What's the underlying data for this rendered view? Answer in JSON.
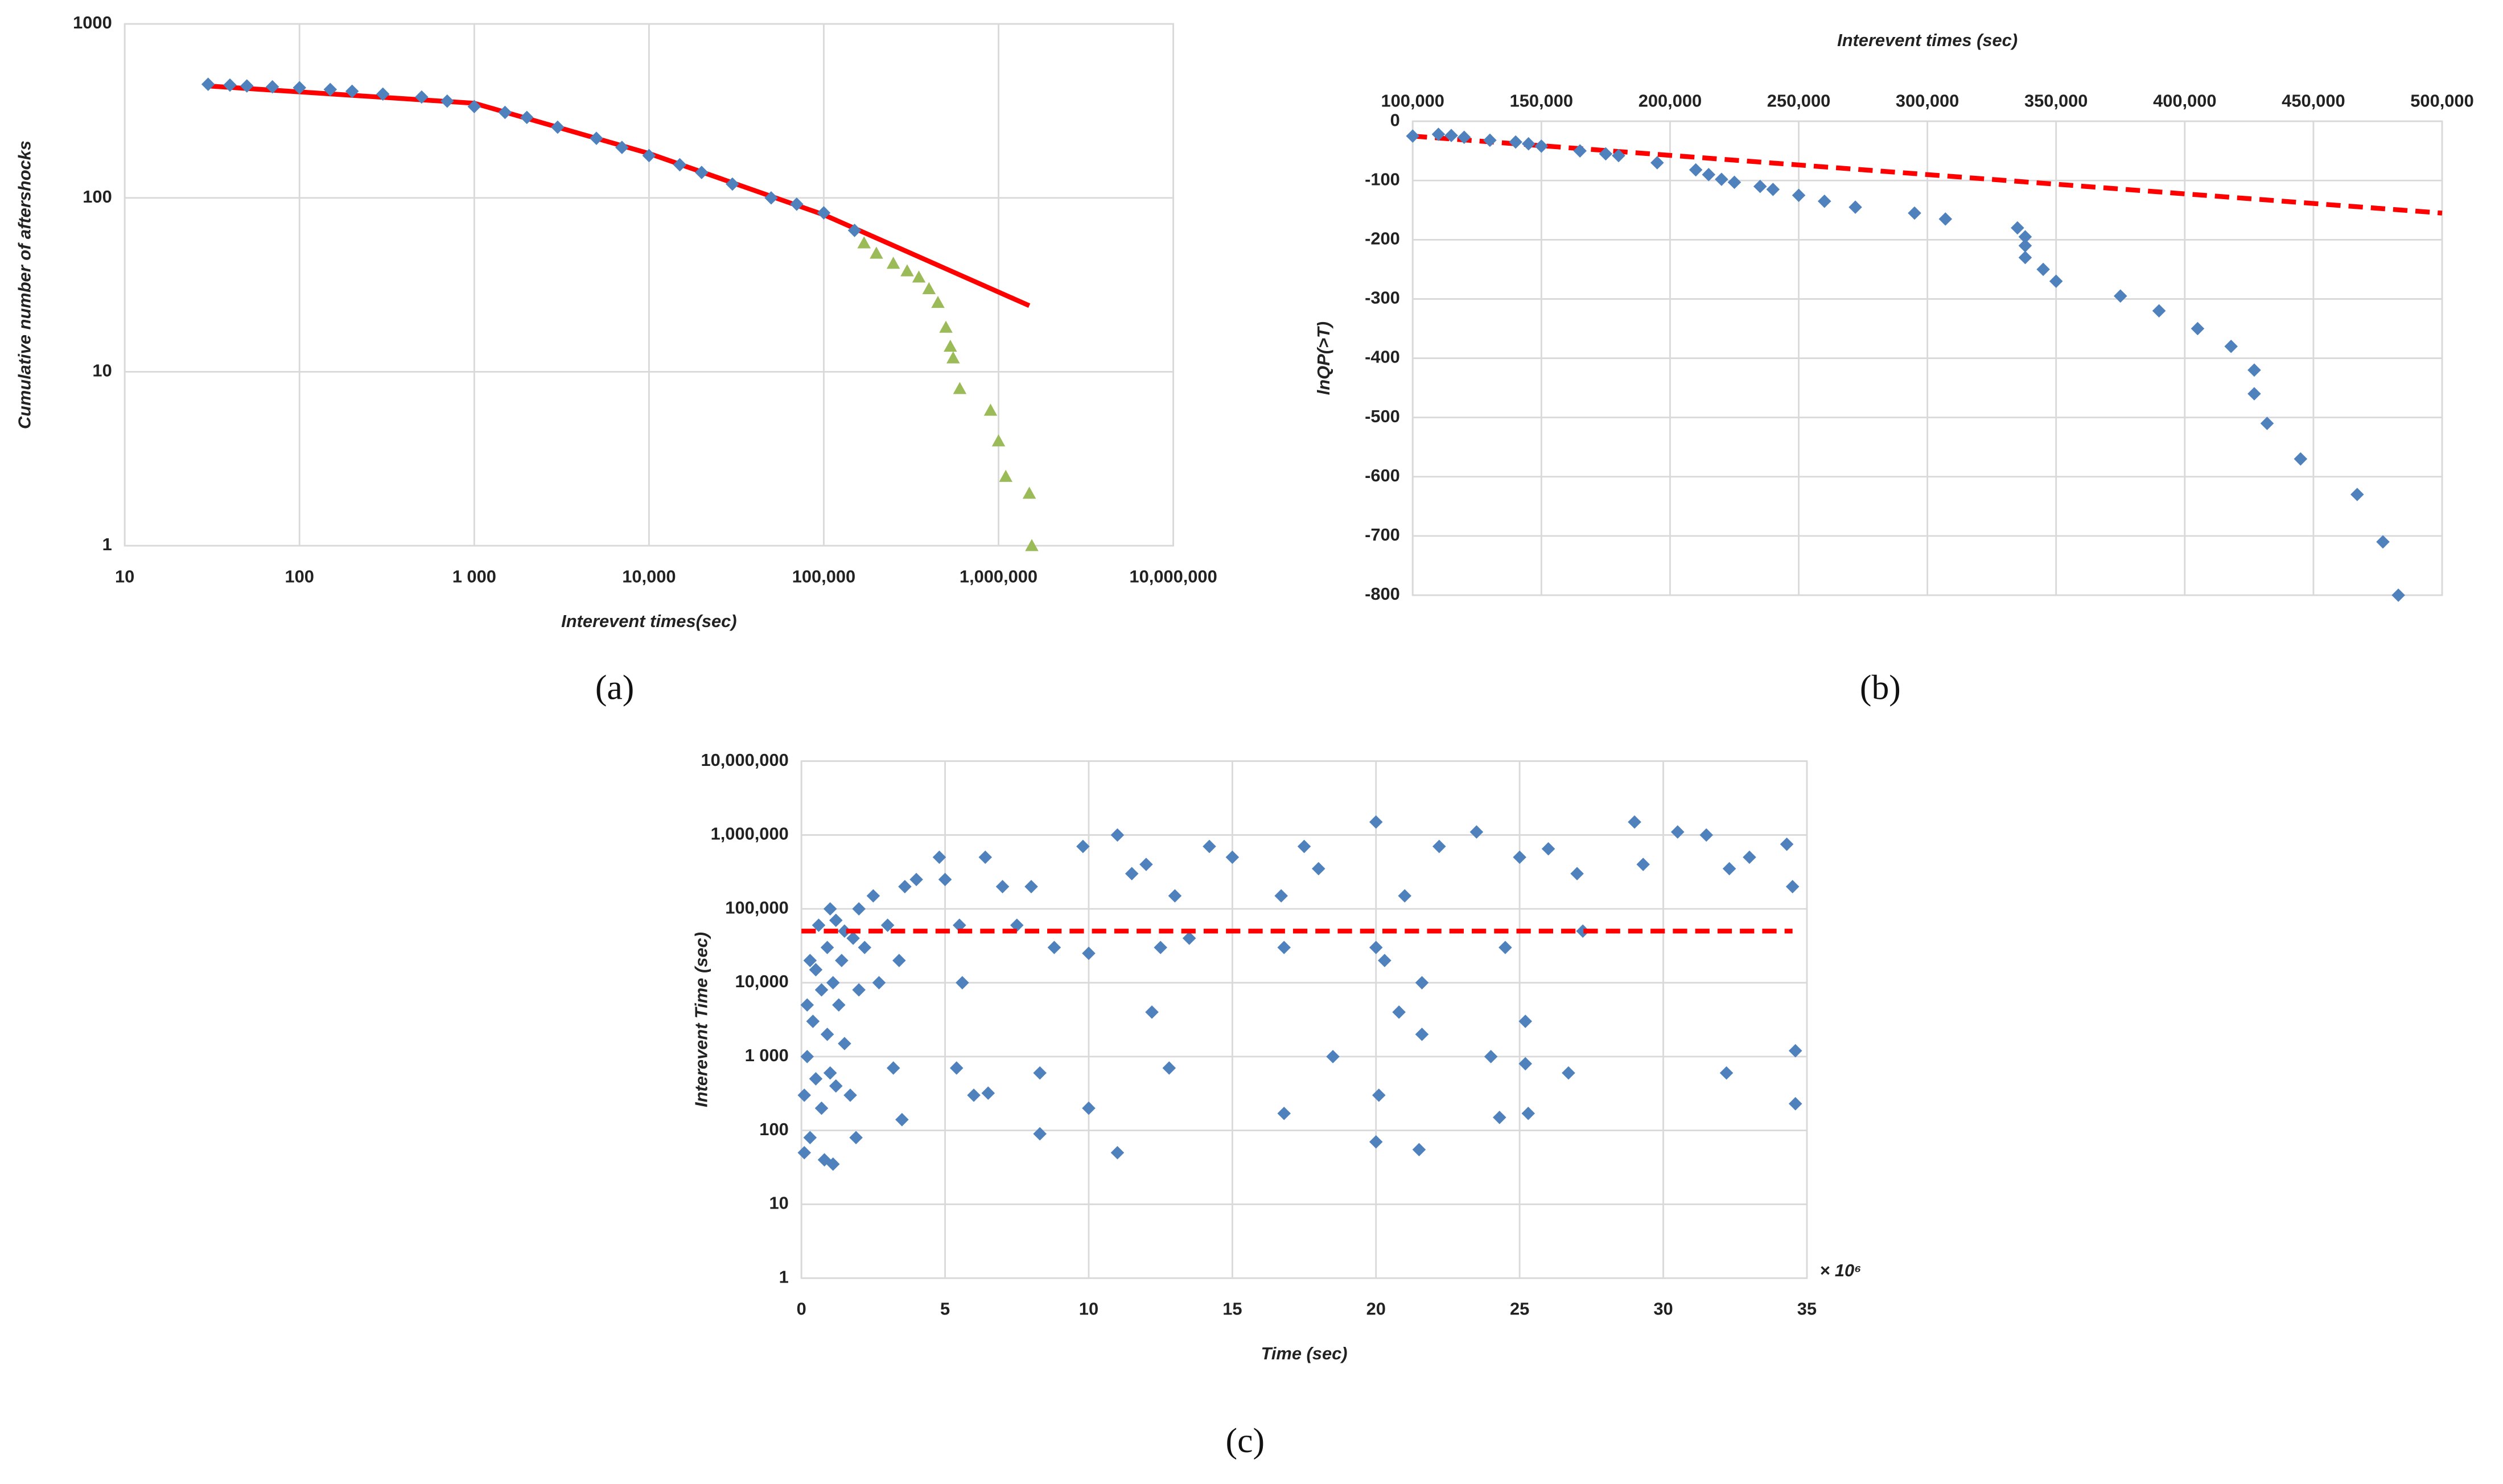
{
  "chart_data": [
    {
      "type": "scatter",
      "panel_label": "(a)",
      "xlabel": "Interevent  times(sec)",
      "ylabel": "Cumulative number of aftershocks",
      "xscale": "log",
      "yscale": "log",
      "grid": true,
      "x_axis_position": "bottom",
      "xlim": [
        10,
        10000000
      ],
      "ylim": [
        1,
        1000
      ],
      "xticks": [
        10,
        100,
        {
          "value": 1000,
          "label": "1 000"
        },
        {
          "value": 10000,
          "label": "10,000"
        },
        {
          "value": 100000,
          "label": "100,000"
        },
        {
          "value": 1000000,
          "label": "1,000,000"
        },
        {
          "value": 10000000,
          "label": "10,000,000"
        }
      ],
      "yticks": [
        1,
        10,
        100,
        1000
      ],
      "series": [
        {
          "color": "#ff0000",
          "marker": "line",
          "x": [
            30,
            1000,
            10000,
            100000,
            1500000
          ],
          "values": [
            440,
            350,
            180,
            80,
            24
          ]
        },
        {
          "color": "#4f81bd",
          "marker": "diamond",
          "x": [
            30,
            40,
            50,
            70,
            100,
            150,
            200,
            300,
            500,
            700,
            1000,
            1500,
            2000,
            3000,
            5000,
            7000,
            10000,
            15000,
            20000,
            30000,
            50000,
            70000,
            100000,
            150000
          ],
          "values": [
            450,
            445,
            440,
            435,
            430,
            420,
            410,
            395,
            380,
            360,
            335,
            310,
            290,
            255,
            220,
            195,
            175,
            155,
            140,
            120,
            100,
            92,
            82,
            65
          ]
        },
        {
          "color": "#9bbb59",
          "marker": "triangle",
          "x": [
            170000,
            200000,
            250000,
            300000,
            350000,
            400000,
            450000,
            500000,
            530000,
            550000,
            600000,
            900000,
            1000000,
            1100000,
            1500000,
            1550000
          ],
          "values": [
            55,
            48,
            42,
            38,
            35,
            30,
            25,
            18,
            14,
            12,
            8,
            6,
            4,
            2.5,
            2,
            1
          ]
        }
      ]
    },
    {
      "type": "scatter",
      "panel_label": "(b)",
      "xlabel": "Interevent times (sec)",
      "ylabel": "lnQP(>T)",
      "xscale": "linear",
      "yscale": "linear",
      "grid": true,
      "x_axis_position": "top",
      "xlim": [
        100000,
        500000
      ],
      "ylim": [
        -800,
        0
      ],
      "xticks": [
        {
          "value": 100000,
          "label": "100,000"
        },
        {
          "value": 150000,
          "label": "150,000"
        },
        {
          "value": 200000,
          "label": "200,000"
        },
        {
          "value": 250000,
          "label": "250,000"
        },
        {
          "value": 300000,
          "label": "300,000"
        },
        {
          "value": 350000,
          "label": "350,000"
        },
        {
          "value": 400000,
          "label": "400,000"
        },
        {
          "value": 450000,
          "label": "450,000"
        },
        {
          "value": 500000,
          "label": "500,000"
        }
      ],
      "yticks": [
        0,
        -100,
        -200,
        -300,
        -400,
        -500,
        -600,
        -700,
        -800
      ],
      "series": [
        {
          "color": "#ff0000",
          "marker": "dashed",
          "x": [
            100000,
            500000
          ],
          "values": [
            -25,
            -155
          ]
        },
        {
          "color": "#4f81bd",
          "marker": "diamond",
          "x": [
            100000,
            110000,
            115000,
            120000,
            130000,
            140000,
            145000,
            150000,
            165000,
            175000,
            180000,
            195000,
            210000,
            215000,
            220000,
            225000,
            235000,
            240000,
            250000,
            260000,
            272000,
            295000,
            307000,
            335000,
            338000,
            338000,
            338000,
            345000,
            350000,
            375000,
            390000,
            405000,
            418000,
            427000,
            427000,
            432000,
            445000,
            467000,
            477000,
            483000
          ],
          "values": [
            -25,
            -22,
            -24,
            -27,
            -32,
            -35,
            -38,
            -42,
            -50,
            -55,
            -58,
            -70,
            -82,
            -90,
            -98,
            -103,
            -110,
            -115,
            -125,
            -135,
            -145,
            -155,
            -165,
            -180,
            -195,
            -210,
            -230,
            -250,
            -270,
            -295,
            -320,
            -350,
            -380,
            -420,
            -460,
            -510,
            -570,
            -630,
            -710,
            -800
          ]
        }
      ]
    },
    {
      "type": "scatter",
      "panel_label": "(c)",
      "xlabel": "Time (sec)",
      "ylabel": "Interevent Time (sec)",
      "x_multiplier": "× 10⁶",
      "xscale": "linear",
      "yscale": "log",
      "grid": true,
      "x_axis_position": "bottom",
      "xlim": [
        0,
        35
      ],
      "ylim": [
        1,
        10000000
      ],
      "xticks": [
        0,
        5,
        10,
        15,
        20,
        25,
        30,
        35
      ],
      "yticks": [
        1,
        10,
        100,
        {
          "value": 1000,
          "label": "1 000"
        },
        {
          "value": 10000,
          "label": "10,000"
        },
        {
          "value": 100000,
          "label": "100,000"
        },
        {
          "value": 1000000,
          "label": "1,000,000"
        },
        {
          "value": 10000000,
          "label": "10,000,000"
        }
      ],
      "series": [
        {
          "color": "#4f81bd",
          "marker": "diamond",
          "x": [
            0.1,
            0.1,
            0.2,
            0.2,
            0.3,
            0.3,
            0.4,
            0.5,
            0.5,
            0.6,
            0.7,
            0.7,
            0.8,
            0.9,
            0.9,
            1.0,
            1.0,
            1.1,
            1.1,
            1.2,
            1.2,
            1.3,
            1.4,
            1.5,
            1.5,
            1.7,
            1.8,
            1.9,
            2.0,
            2.0,
            2.2,
            2.5,
            2.7,
            3.0,
            3.2,
            3.4,
            3.5,
            3.6,
            4.0,
            4.8,
            5.0,
            5.4,
            5.5,
            5.6,
            6.0,
            6.4,
            6.5,
            7.0,
            7.5,
            8.0,
            8.3,
            8.3,
            8.8,
            9.8,
            10.0,
            10.0,
            11.0,
            11.0,
            11.5,
            12.0,
            12.2,
            12.5,
            12.8,
            13.0,
            13.5,
            14.2,
            15.0,
            16.7,
            16.8,
            16.8,
            17.5,
            18.0,
            18.5,
            20.0,
            20.0,
            20.0,
            20.1,
            20.3,
            20.8,
            21.0,
            21.5,
            21.6,
            21.6,
            22.2,
            23.5,
            24.0,
            24.3,
            24.5,
            25.0,
            25.2,
            25.2,
            25.3,
            26.0,
            26.7,
            27.0,
            27.2,
            29.0,
            29.3,
            30.5,
            31.5,
            32.2,
            32.3,
            33.0,
            34.3,
            34.5,
            34.6,
            34.6
          ],
          "values": [
            50,
            300,
            1000,
            5000,
            20000,
            80,
            3000,
            500,
            15000,
            60000,
            200,
            8000,
            40,
            2000,
            30000,
            100000,
            600,
            35,
            10000,
            70000,
            400,
            5000,
            20000,
            1500,
            50000,
            300,
            40000,
            80,
            100000,
            8000,
            30000,
            150000,
            10000,
            60000,
            700,
            20000,
            140,
            200000,
            250000,
            500000,
            250000,
            700,
            60000,
            10000,
            300,
            500000,
            320,
            200000,
            60000,
            200000,
            90,
            600,
            30000,
            700000,
            25000,
            200,
            50,
            1000000,
            300000,
            400000,
            4000,
            30000,
            700,
            150000,
            40000,
            700000,
            500000,
            150000,
            30000,
            170,
            700000,
            350000,
            1000,
            1500000,
            70,
            30000,
            300,
            20000,
            4000,
            150000,
            55,
            10000,
            2000,
            700000,
            1100000,
            1000,
            150,
            30000,
            500000,
            3000,
            800,
            170,
            650000,
            600,
            300000,
            50000,
            1500000,
            400000,
            1100000,
            1000000,
            600,
            350000,
            500000,
            750000,
            200000,
            1200,
            230
          ]
        },
        {
          "color": "#ff0000",
          "marker": "dashed",
          "x": [
            0,
            34.5
          ],
          "values": [
            50000,
            50000
          ]
        }
      ]
    }
  ]
}
